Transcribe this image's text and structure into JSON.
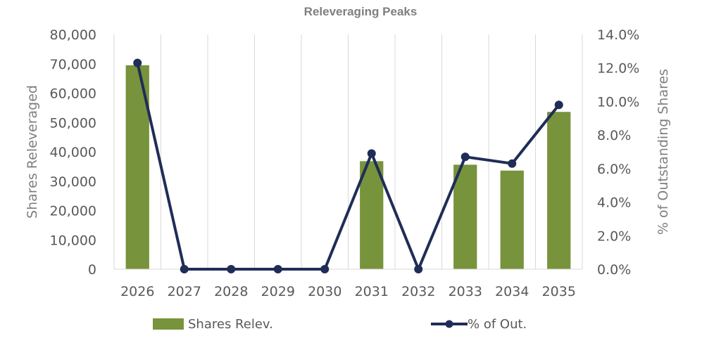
{
  "chart_data": {
    "type": "bar",
    "title": "Releveraging Peaks",
    "categories": [
      "2026",
      "2027",
      "2028",
      "2029",
      "2030",
      "2031",
      "2032",
      "2033",
      "2034",
      "2035"
    ],
    "series": [
      {
        "name": "Shares Relev.",
        "type": "bar",
        "axis": "left",
        "color": "#77933c",
        "values": [
          69500,
          0,
          0,
          0,
          0,
          36800,
          0,
          35600,
          33600,
          53600
        ]
      },
      {
        "name": "% of Out.",
        "type": "line",
        "axis": "right",
        "color": "#1f2d57",
        "values": [
          12.3,
          0.0,
          0.0,
          0.0,
          0.0,
          6.9,
          0.0,
          6.7,
          6.3,
          9.8
        ]
      }
    ],
    "ylabel": "Shares Releveraged",
    "y2label": "% of Outstanding Shares",
    "ylim": [
      0,
      80000
    ],
    "y2lim": [
      0,
      14
    ],
    "yticks": [
      "0",
      "10,000",
      "20,000",
      "30,000",
      "40,000",
      "50,000",
      "60,000",
      "70,000",
      "80,000"
    ],
    "y2ticks": [
      "0.0%",
      "2.0%",
      "4.0%",
      "6.0%",
      "8.0%",
      "10.0%",
      "12.0%",
      "14.0%"
    ],
    "grid": "vertical",
    "legend": "bottom"
  }
}
